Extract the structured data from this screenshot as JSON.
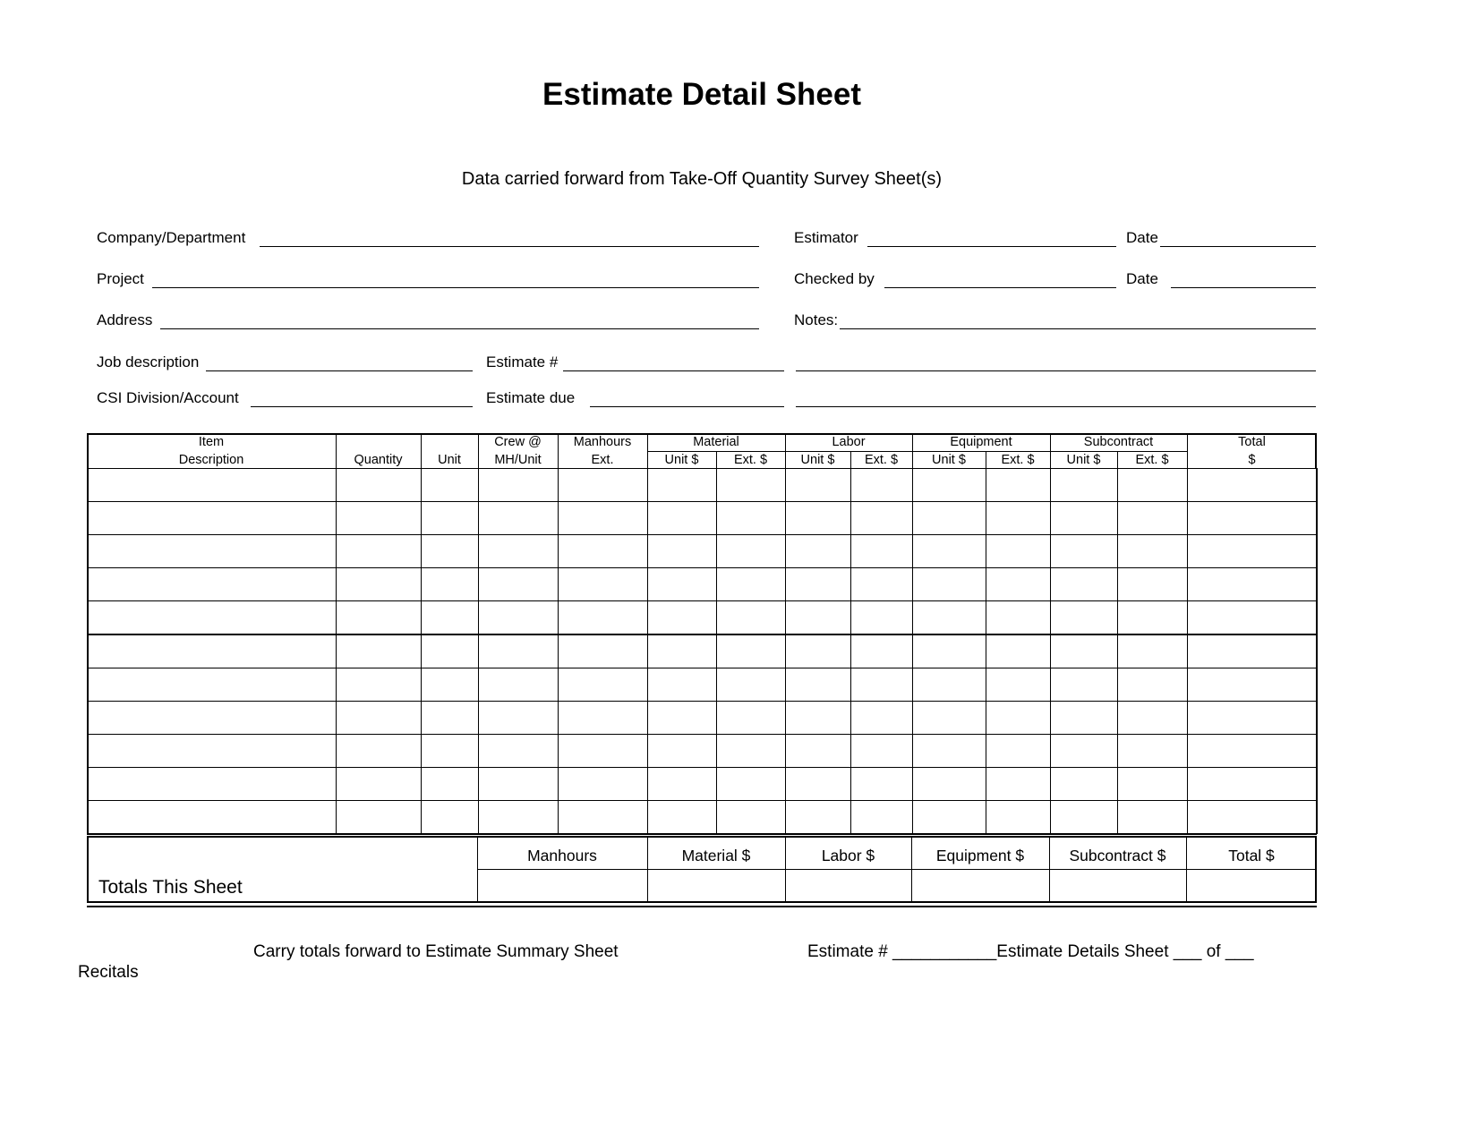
{
  "title": "Estimate Detail Sheet",
  "subtitle": "Data carried forward from Take-Off Quantity Survey Sheet(s)",
  "fields": {
    "company": "Company/Department",
    "estimator": "Estimator",
    "date1": "Date",
    "project": "Project",
    "checked_by": "Checked by",
    "date2": "Date",
    "address": "Address",
    "notes": "Notes:",
    "job_description": "Job description",
    "estimate_no": "Estimate #",
    "csi": "CSI Division/Account",
    "estimate_due": "Estimate due"
  },
  "table": {
    "headers": {
      "item": "Item",
      "description": "Description",
      "quantity": "Quantity",
      "unit": "Unit",
      "crew": "Crew @",
      "mh_unit": "MH/Unit",
      "manhours": "Manhours",
      "ext": "Ext.",
      "material": "Material",
      "labor": "Labor",
      "equipment": "Equipment",
      "subcontract": "Subcontract",
      "total": "Total",
      "dollar": "$",
      "unit_dollar": "Unit $",
      "ext_dollar": "Ext. $"
    },
    "row_count": 11
  },
  "totals": {
    "label": "Totals This Sheet",
    "columns": [
      "Manhours",
      "Material $",
      "Labor $",
      "Equipment $",
      "Subcontract $",
      "Total $"
    ]
  },
  "footer": {
    "carry": "Carry totals forward to Estimate Summary Sheet",
    "sheet_info": "Estimate # ___________Estimate Details   Sheet ___ of ___",
    "recitals": "Recitals"
  }
}
